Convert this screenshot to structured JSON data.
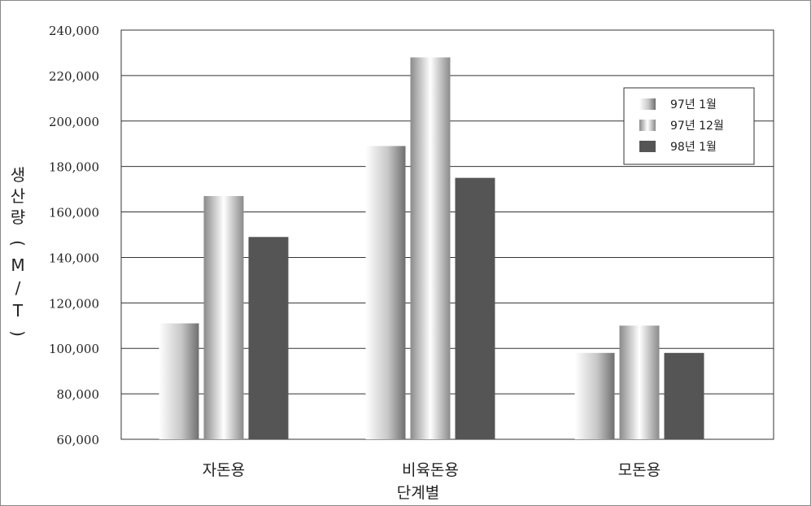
{
  "chart_data": {
    "type": "bar",
    "ylabel_chars": [
      "생",
      "산",
      "량",
      "(",
      "M",
      "/",
      "T",
      ")"
    ],
    "xlabel": "단계별",
    "categories": [
      "자돈용",
      "비육돈용",
      "모돈용"
    ],
    "series": [
      {
        "name": "97년 1월",
        "values": [
          111000,
          189000,
          98000
        ],
        "color": "#9a9a9a",
        "style": "gradient-left"
      },
      {
        "name": "97년 12월",
        "values": [
          167000,
          228000,
          110000
        ],
        "color": "#b0b0b0",
        "style": "gradient-center"
      },
      {
        "name": "98년 1월",
        "values": [
          149000,
          175000,
          98000
        ],
        "color": "#555555",
        "style": "solid"
      }
    ],
    "ylim": [
      60000,
      240000
    ],
    "yticks": [
      60000,
      80000,
      100000,
      120000,
      140000,
      160000,
      180000,
      200000,
      220000,
      240000
    ],
    "ytick_labels": [
      "60,000",
      "80,000",
      "100,000",
      "120,000",
      "140,000",
      "160,000",
      "180,000",
      "200,000",
      "220,000",
      "240,000"
    ],
    "grid": true,
    "legend_position": "top-right"
  }
}
